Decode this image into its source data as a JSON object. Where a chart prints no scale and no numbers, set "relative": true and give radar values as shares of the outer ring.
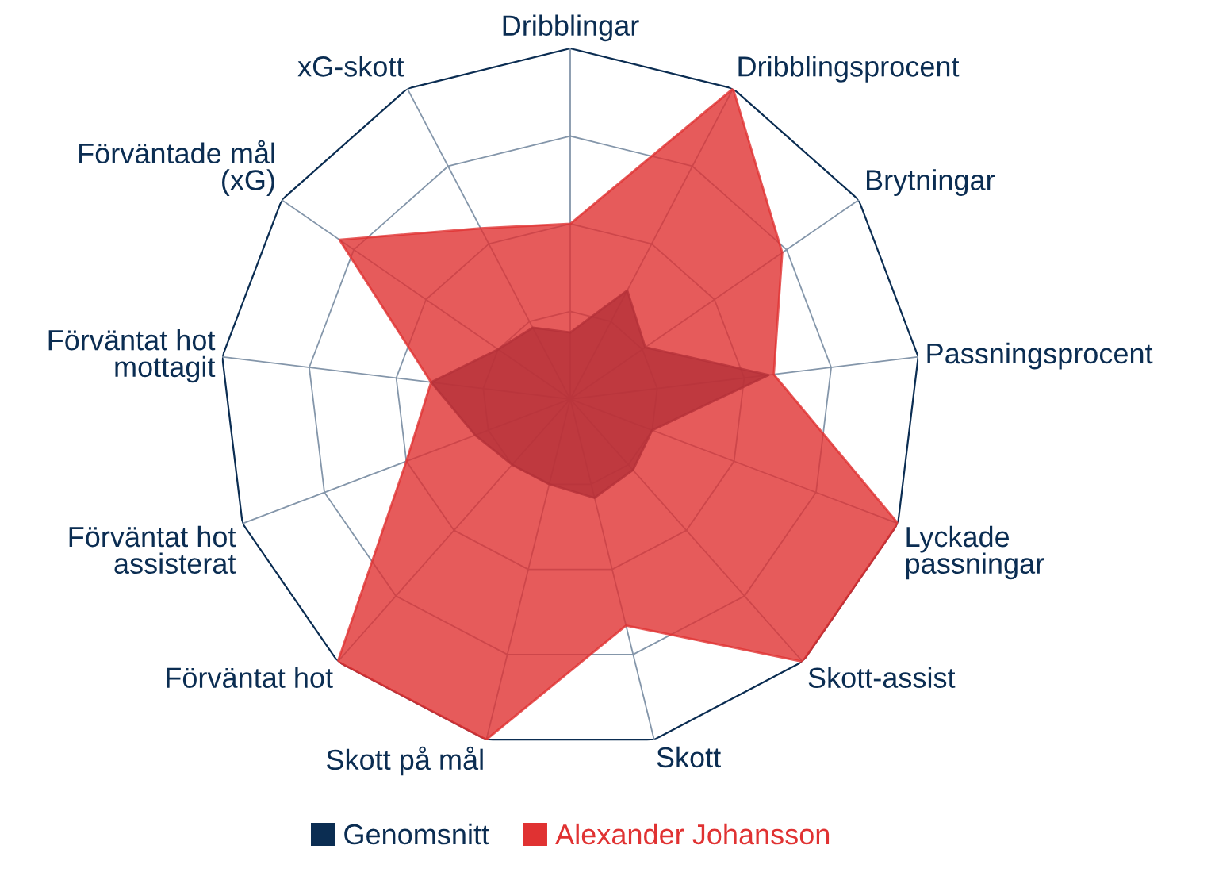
{
  "chart_data": {
    "type": "radar",
    "relative": true,
    "grid": true,
    "legend": "bottom",
    "categories": [
      "Dribblingar",
      "Dribblingsprocent",
      "Brytningar",
      "Passningsprocent",
      "Lyckade\npassningar",
      "Skott-assist",
      "Skott",
      "Skott på mål",
      "Förväntat hot",
      "Förväntat hot\nassisterat",
      "Förväntat hot\nmottagit",
      "Förväntade mål\n(xG)",
      "xG-skott"
    ],
    "series": [
      {
        "name": "Genomsnitt",
        "color": "#0b2d52",
        "values": [
          0.19,
          0.35,
          0.26,
          0.57,
          0.25,
          0.27,
          0.29,
          0.25,
          0.25,
          0.29,
          0.4,
          0.25,
          0.23
        ]
      },
      {
        "name": "Alexander Johansson",
        "color": "#e03232",
        "values": [
          0.5,
          1.0,
          0.735,
          0.585,
          1.0,
          1.0,
          0.665,
          1.0,
          1.0,
          0.5,
          0.4,
          0.8,
          0.55
        ]
      }
    ]
  }
}
